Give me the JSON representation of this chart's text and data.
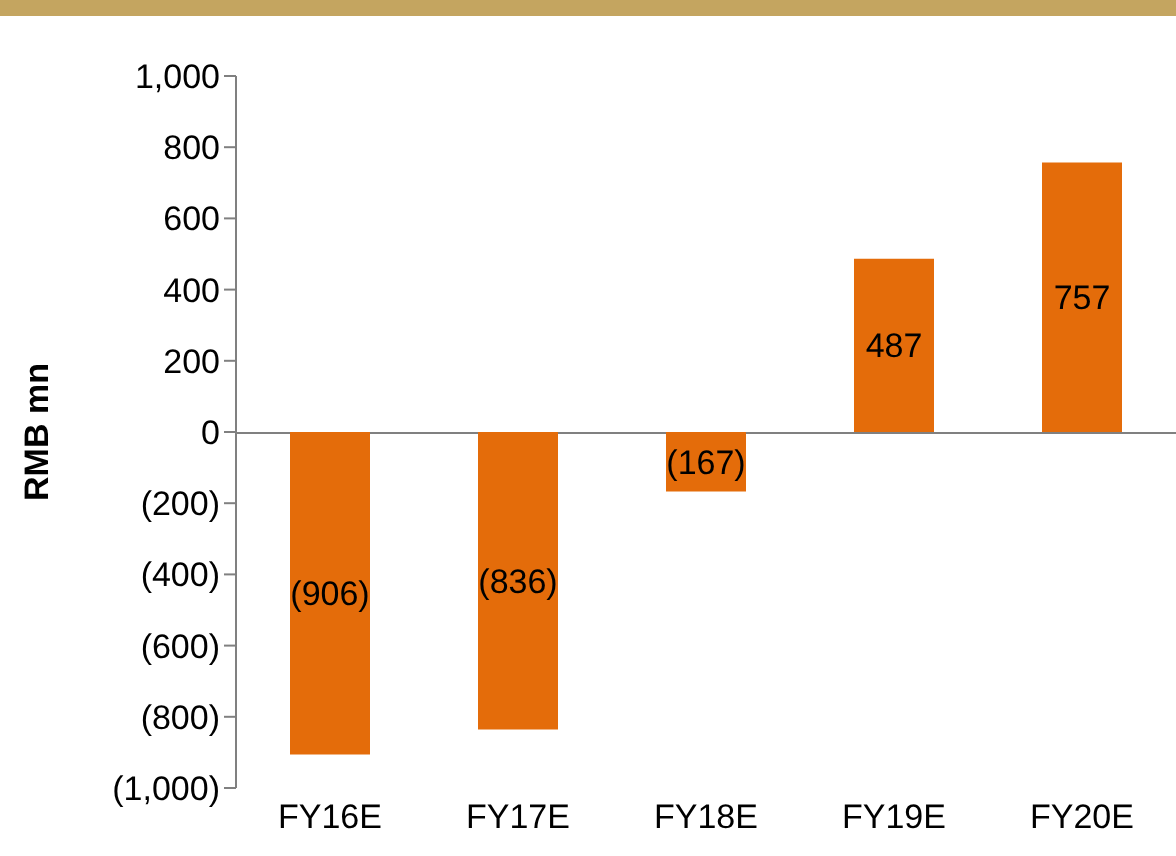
{
  "chart_data": {
    "type": "bar",
    "ylabel": "RMB mn",
    "categories": [
      "FY16E",
      "FY17E",
      "FY18E",
      "FY19E",
      "FY20E"
    ],
    "values": [
      -906,
      -836,
      -167,
      487,
      757
    ],
    "value_labels": [
      "(906)",
      "(836)",
      "(167)",
      "487",
      "757"
    ],
    "color": "#e46c0a",
    "ylim": [
      -1000,
      1000
    ],
    "yticks": [
      {
        "value": -1000,
        "label": "(1,000)"
      },
      {
        "value": -800,
        "label": "(800)"
      },
      {
        "value": -600,
        "label": "(600)"
      },
      {
        "value": -400,
        "label": "(400)"
      },
      {
        "value": -200,
        "label": "(200)"
      },
      0,
      200,
      400,
      600,
      800,
      {
        "value": 1000,
        "label": "1,000"
      }
    ],
    "grid": false
  }
}
